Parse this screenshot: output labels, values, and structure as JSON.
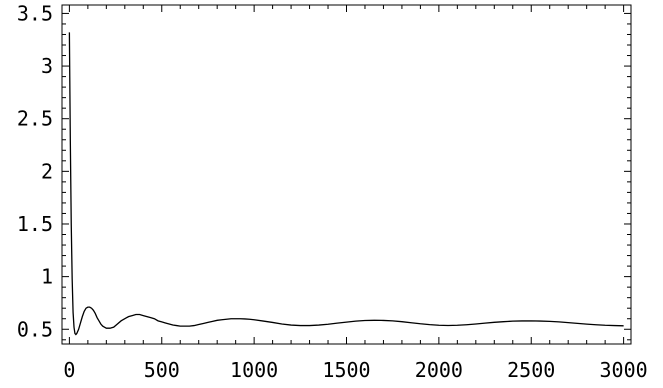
{
  "chart_data": {
    "type": "line",
    "title": "",
    "xlabel": "",
    "ylabel": "",
    "xlim": [
      -40,
      3040
    ],
    "ylim": [
      0.36,
      3.58
    ],
    "grid": false,
    "x_ticks": [
      0,
      500,
      1000,
      1500,
      2000,
      2500,
      3000
    ],
    "x_tick_labels": [
      "0",
      "500",
      "1000",
      "1500",
      "2000",
      "2500",
      "3000"
    ],
    "y_ticks": [
      0.5,
      1,
      1.5,
      2,
      2.5,
      3,
      3.5
    ],
    "y_tick_labels": [
      "0.5",
      "1",
      "1.5",
      "2",
      "2.5",
      "3",
      "3.5"
    ],
    "series": [
      {
        "color": "#000000",
        "x": [
          0,
          5,
          10,
          15,
          20,
          25,
          30,
          35,
          40,
          50,
          60,
          70,
          80,
          90,
          100,
          110,
          120,
          130,
          140,
          150,
          160,
          170,
          180,
          190,
          200,
          220,
          240,
          260,
          280,
          300,
          320,
          340,
          360,
          380,
          400,
          420,
          440,
          460,
          480,
          500,
          520,
          540,
          560,
          580,
          600,
          625,
          650,
          675,
          700,
          725,
          750,
          775,
          800,
          825,
          850,
          875,
          900,
          925,
          950,
          975,
          1000,
          1050,
          1100,
          1150,
          1200,
          1250,
          1300,
          1350,
          1400,
          1450,
          1500,
          1550,
          1600,
          1650,
          1700,
          1750,
          1800,
          1850,
          1900,
          1950,
          2000,
          2050,
          2100,
          2150,
          2200,
          2250,
          2300,
          2350,
          2400,
          2450,
          2500,
          2550,
          2600,
          2650,
          2700,
          2750,
          2800,
          2850,
          2900,
          2950,
          3000
        ],
        "y": [
          3.32,
          2.3,
          1.5,
          0.98,
          0.66,
          0.52,
          0.46,
          0.45,
          0.46,
          0.5,
          0.56,
          0.62,
          0.67,
          0.7,
          0.71,
          0.71,
          0.7,
          0.68,
          0.65,
          0.61,
          0.58,
          0.55,
          0.53,
          0.52,
          0.51,
          0.51,
          0.52,
          0.55,
          0.58,
          0.6,
          0.62,
          0.63,
          0.64,
          0.64,
          0.63,
          0.62,
          0.61,
          0.6,
          0.58,
          0.57,
          0.56,
          0.55,
          0.54,
          0.535,
          0.53,
          0.53,
          0.53,
          0.535,
          0.545,
          0.555,
          0.565,
          0.575,
          0.585,
          0.59,
          0.595,
          0.6,
          0.6,
          0.6,
          0.598,
          0.595,
          0.59,
          0.578,
          0.565,
          0.55,
          0.54,
          0.535,
          0.535,
          0.54,
          0.548,
          0.558,
          0.568,
          0.577,
          0.583,
          0.585,
          0.584,
          0.58,
          0.572,
          0.562,
          0.552,
          0.544,
          0.538,
          0.536,
          0.538,
          0.543,
          0.55,
          0.558,
          0.566,
          0.572,
          0.577,
          0.579,
          0.58,
          0.578,
          0.575,
          0.57,
          0.563,
          0.556,
          0.549,
          0.543,
          0.538,
          0.535,
          0.533
        ]
      }
    ]
  }
}
